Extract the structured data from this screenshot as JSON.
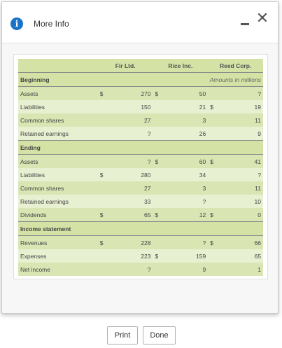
{
  "dialog": {
    "title": "More Info"
  },
  "table": {
    "columns": [
      "",
      "Fir Ltd.",
      "Rice Inc.",
      "Reed Corp."
    ],
    "amounts_note": "Amounts in millions",
    "sections": [
      {
        "title": "Beginning",
        "rows": [
          {
            "label": "Assets",
            "fir_cur": "$",
            "fir": "270",
            "rice_cur": "$",
            "rice": "50",
            "reed_cur": "",
            "reed": "?"
          },
          {
            "label": "Liabilities",
            "fir_cur": "",
            "fir": "150",
            "rice_cur": "",
            "rice": "21",
            "reed_cur": "$",
            "reed": "19"
          },
          {
            "label": "Common shares",
            "fir_cur": "",
            "fir": "27",
            "rice_cur": "",
            "rice": "3",
            "reed_cur": "",
            "reed": "11"
          },
          {
            "label": "Retained earnings",
            "fir_cur": "",
            "fir": "?",
            "rice_cur": "",
            "rice": "26",
            "reed_cur": "",
            "reed": "9"
          }
        ]
      },
      {
        "title": "Ending",
        "rows": [
          {
            "label": "Assets",
            "fir_cur": "",
            "fir": "?",
            "rice_cur": "$",
            "rice": "60",
            "reed_cur": "$",
            "reed": "41"
          },
          {
            "label": "Liabilities",
            "fir_cur": "$",
            "fir": "280",
            "rice_cur": "",
            "rice": "34",
            "reed_cur": "",
            "reed": "?"
          },
          {
            "label": "Common shares",
            "fir_cur": "",
            "fir": "27",
            "rice_cur": "",
            "rice": "3",
            "reed_cur": "",
            "reed": "11"
          },
          {
            "label": "Retained earnings",
            "fir_cur": "",
            "fir": "33",
            "rice_cur": "",
            "rice": "?",
            "reed_cur": "",
            "reed": "10"
          },
          {
            "label": "Dividends",
            "fir_cur": "$",
            "fir": "65",
            "rice_cur": "$",
            "rice": "12",
            "reed_cur": "$",
            "reed": "0"
          }
        ]
      },
      {
        "title": "Income statement",
        "rows": [
          {
            "label": "Revenues",
            "fir_cur": "$",
            "fir": "228",
            "rice_cur": "",
            "rice": "?",
            "reed_cur": "$",
            "reed": "66"
          },
          {
            "label": "Expenses",
            "fir_cur": "",
            "fir": "223",
            "rice_cur": "$",
            "rice": "159",
            "reed_cur": "",
            "reed": "65"
          },
          {
            "label": "Net income",
            "fir_cur": "",
            "fir": "?",
            "rice_cur": "",
            "rice": "9",
            "reed_cur": "",
            "reed": "1"
          }
        ]
      }
    ]
  },
  "buttons": {
    "print": "Print",
    "done": "Done"
  },
  "icons": {
    "info": "info-icon",
    "minimize": "minimize-icon",
    "close": "close-icon"
  },
  "colors": {
    "header_bg": "#d4e2a5",
    "row_light": "#e8f0d2",
    "row_dark": "#d9e6b3",
    "info_blue": "#1a73c8"
  }
}
